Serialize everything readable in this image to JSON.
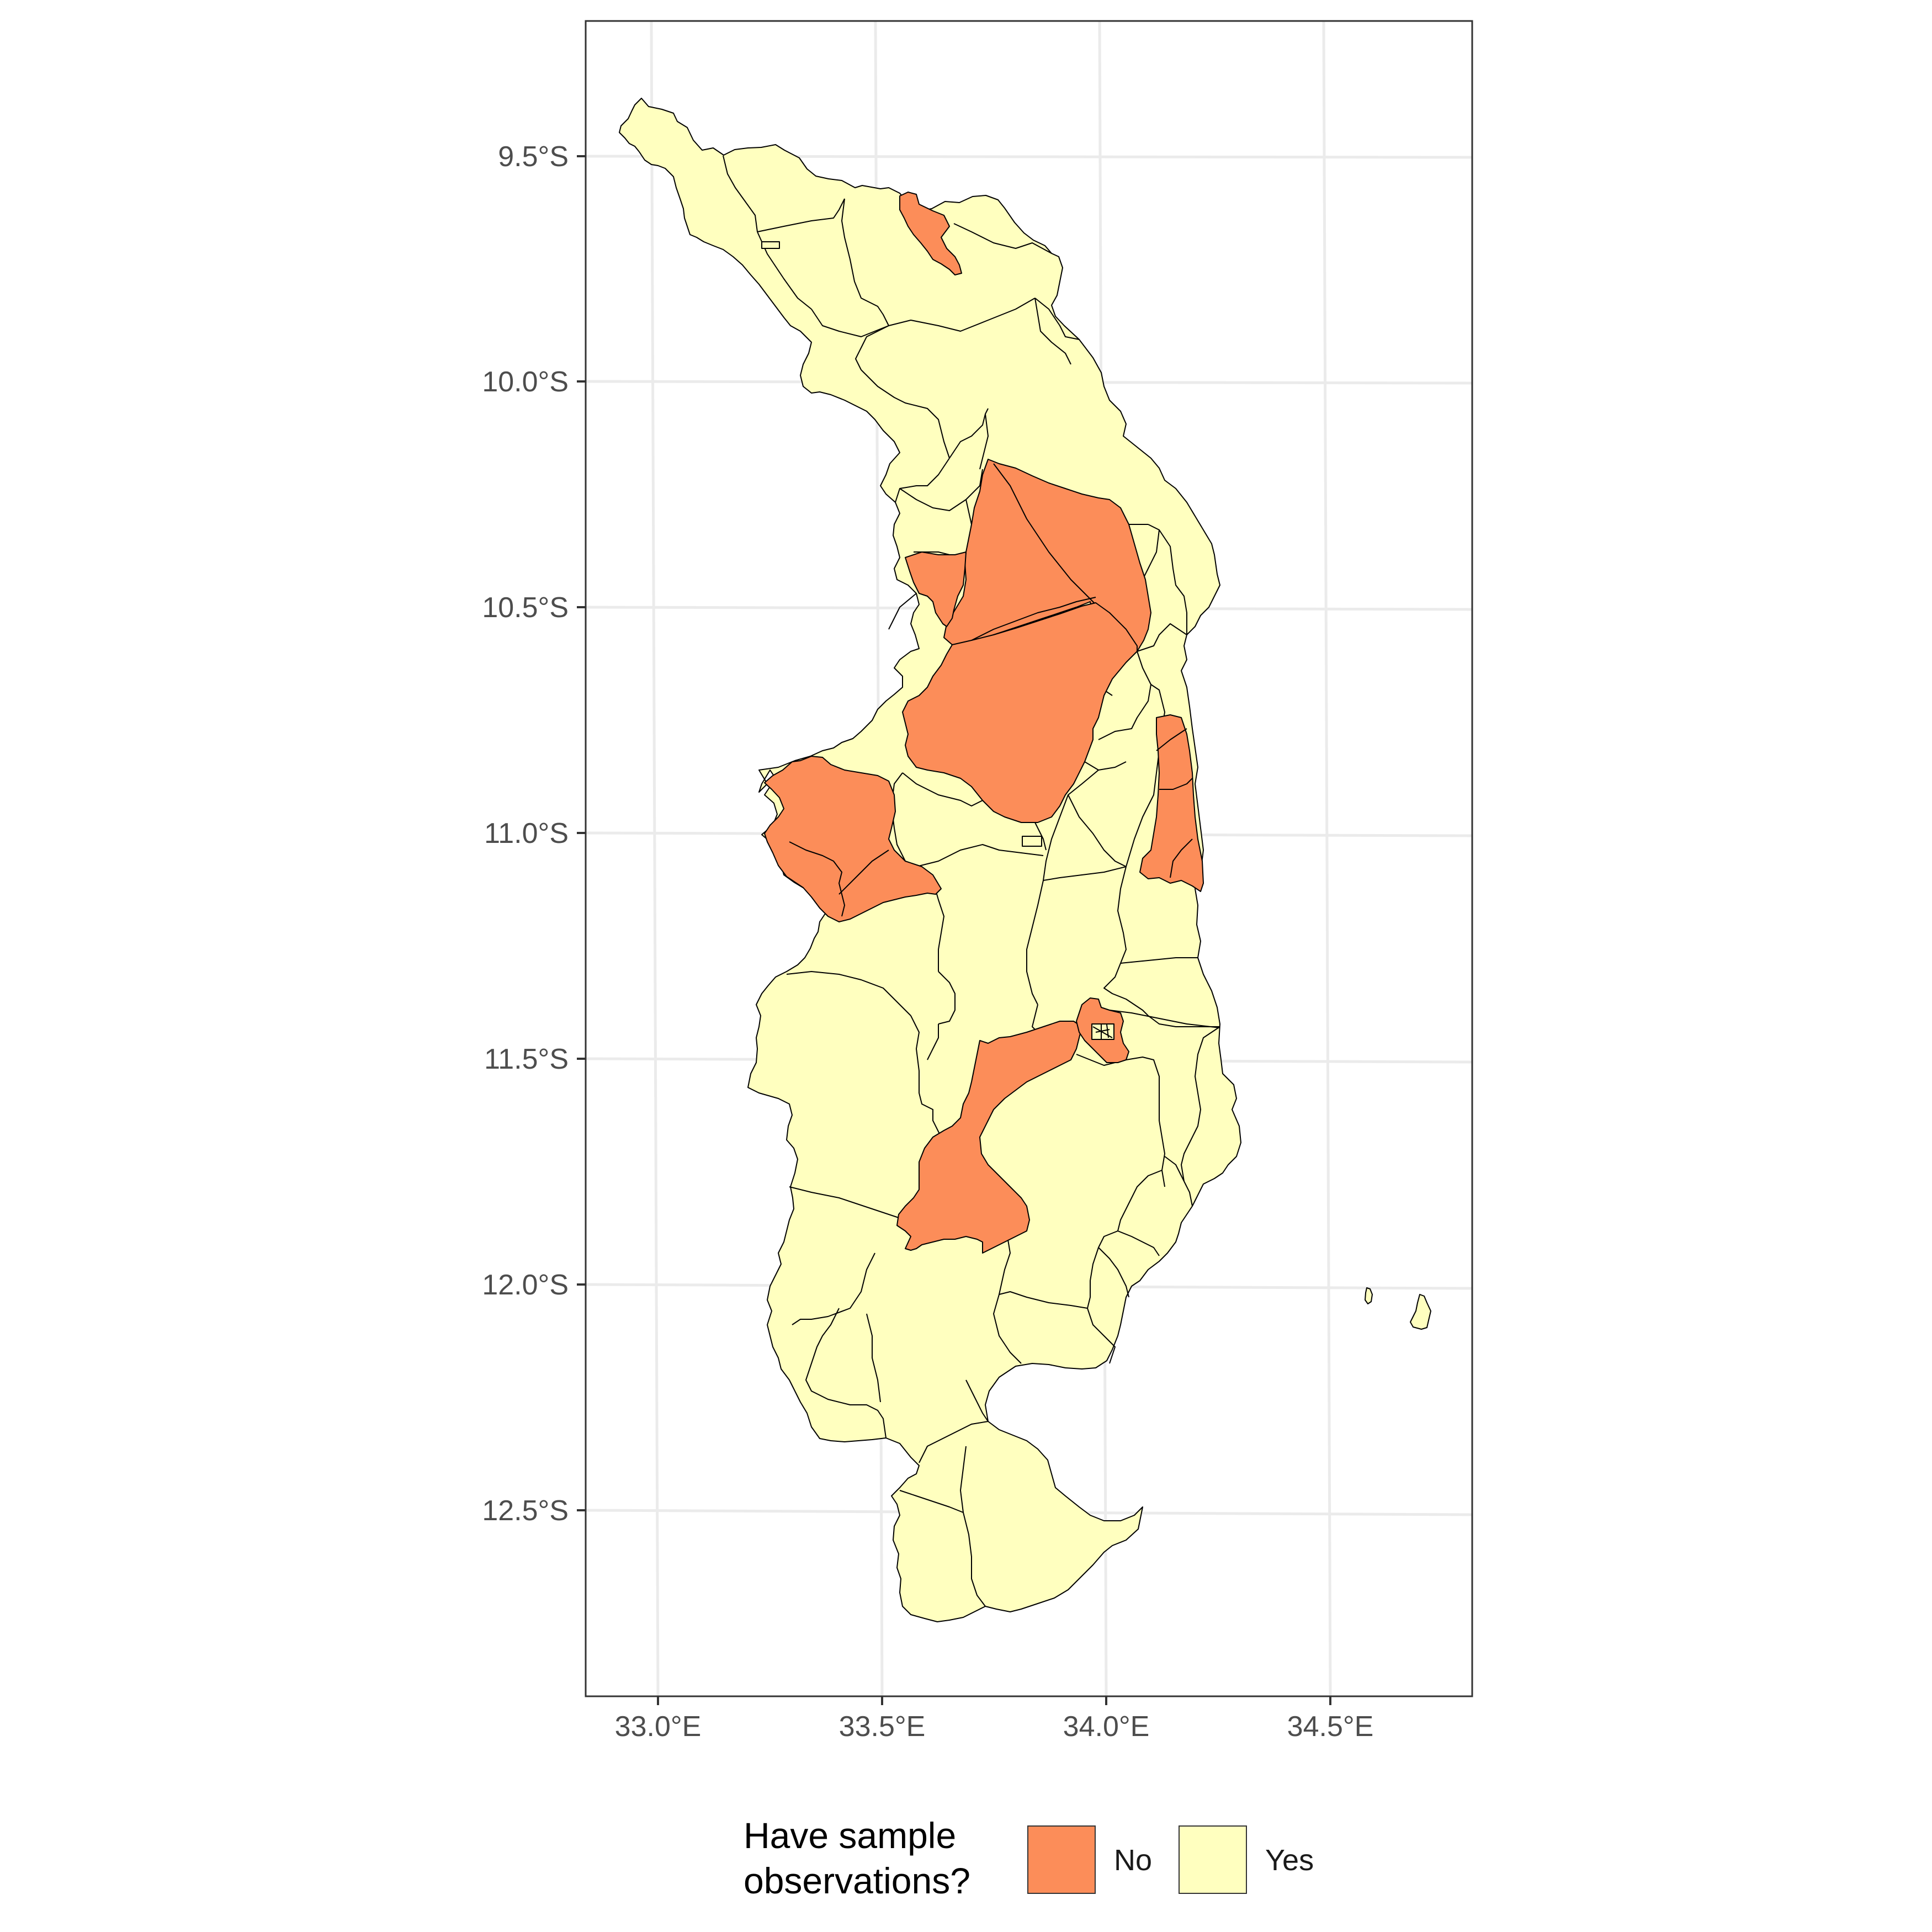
{
  "colors": {
    "no": "#FC8D59",
    "yes": "#FFFFBF",
    "gridline": "#EBEBEB",
    "border": "#333333",
    "polygon_stroke": "#000000"
  },
  "axes": {
    "y_ticks": [
      "9.5°S",
      "10.0°S",
      "10.5°S",
      "11.0°S",
      "11.5°S",
      "12.0°S",
      "12.5°S"
    ],
    "x_ticks": [
      "33.0°E",
      "33.5°E",
      "34.0°E",
      "34.5°E"
    ]
  },
  "chart_data": {
    "type": "choropleth",
    "x_axis": {
      "label": "",
      "unit": "degrees east",
      "range": [
        32.85,
        34.85
      ],
      "ticks": [
        33.0,
        33.5,
        34.0,
        34.5
      ]
    },
    "y_axis": {
      "label": "",
      "unit": "degrees south",
      "range": [
        9.2,
        12.9
      ],
      "ticks": [
        9.5,
        10.0,
        10.5,
        11.0,
        11.5,
        12.0,
        12.5
      ]
    },
    "grid": true,
    "legend_position": "bottom",
    "categories": [
      {
        "label": "No",
        "color": "#FC8D59"
      },
      {
        "label": "Yes",
        "color": "#FFFFBF"
      }
    ],
    "regions": [
      {
        "category": "No",
        "lon": 33.65,
        "lat": 9.68
      },
      {
        "category": "No",
        "lon": 33.85,
        "lat": 10.4
      },
      {
        "category": "No",
        "lon": 33.65,
        "lat": 10.45
      },
      {
        "category": "No",
        "lon": 33.85,
        "lat": 10.75
      },
      {
        "category": "No",
        "lon": 34.18,
        "lat": 10.9
      },
      {
        "category": "No",
        "lon": 33.35,
        "lat": 11.05
      },
      {
        "category": "No",
        "lon": 33.7,
        "lat": 11.7
      },
      {
        "category": "No",
        "lon": 34.02,
        "lat": 11.45
      }
    ]
  },
  "legend": {
    "title_line1": "Have sample",
    "title_line2": "observations?",
    "items": [
      {
        "label": "No",
        "color": "#FC8D59"
      },
      {
        "label": "Yes",
        "color": "#FFFFBF"
      }
    ]
  }
}
